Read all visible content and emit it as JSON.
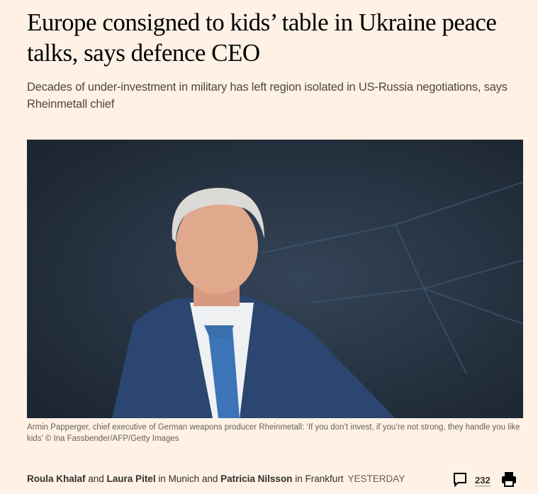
{
  "article": {
    "headline": "Europe consigned to kids’ table in Ukraine peace talks, says defence CEO",
    "standfirst": "Decades of under-investment in military has left region isolated in US-Russia negotiations, says Rheinmetall chief",
    "image_caption": "Armin Papperger, chief executive of German weapons producer Rheinmetall: ‘If you don’t invest, if you’re not strong, they handle you like kids’ © Ina Fassbender/AFP/Getty Images"
  },
  "byline": {
    "author1": "Roula Khalaf",
    "and1": " and ",
    "author2": "Laura Pitel",
    "location1": " in Munich and ",
    "author3": "Patricia Nilsson",
    "location2": " in Frankfurt",
    "timestamp": "YESTERDAY"
  },
  "tools": {
    "comment_icon": "speech-bubble-icon",
    "comment_count": "232",
    "print_icon": "printer-icon"
  },
  "colors": {
    "background": "#FFF1E5",
    "text": "#33302E"
  }
}
